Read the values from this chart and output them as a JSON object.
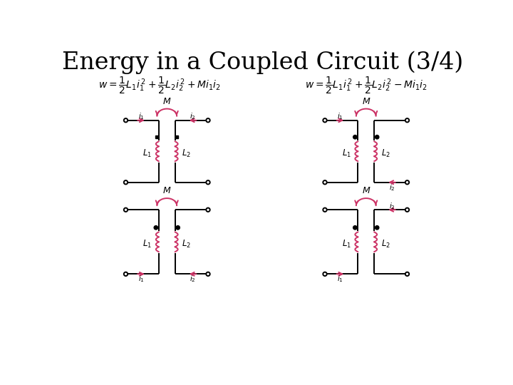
{
  "title": "Energy in a Coupled Circuit (3/4)",
  "title_fontsize": 24,
  "title_color": "#000000",
  "background_color": "#ffffff",
  "circuit_color": "#000000",
  "pink_color": "#cc3366",
  "dot_color": "#000000"
}
